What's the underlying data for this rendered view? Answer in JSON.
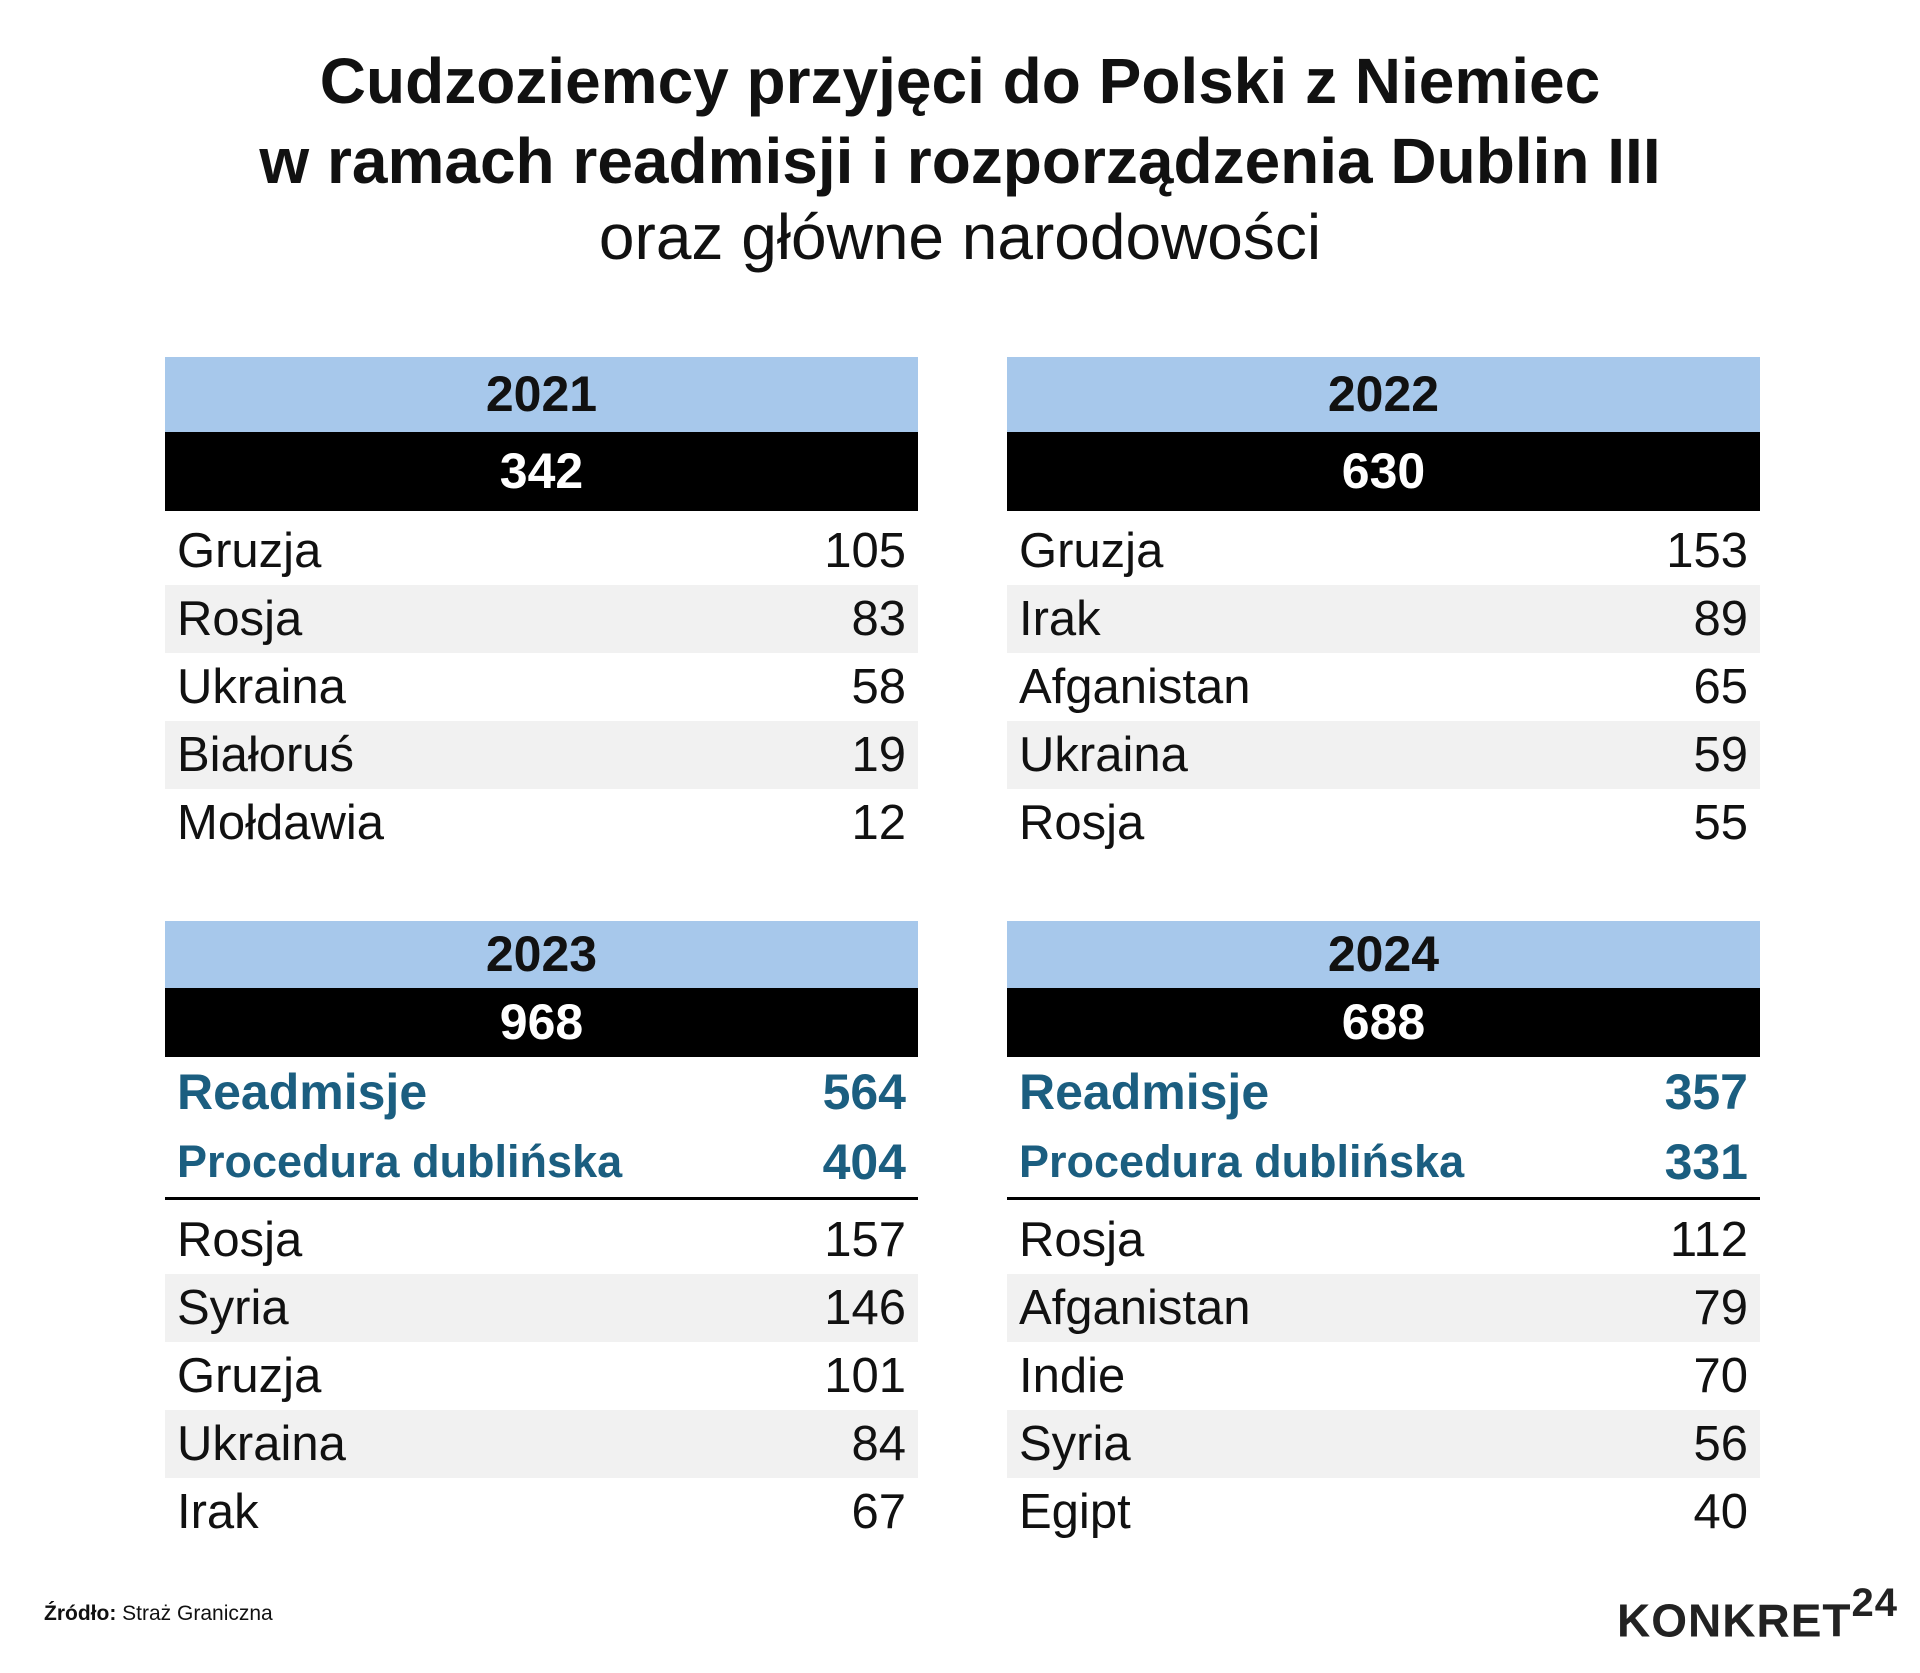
{
  "title": {
    "line1": "Cudzoziemcy przyjęci do Polski z Niemiec",
    "line2": "w ramach readmisji i rozporządzenia Dublin III",
    "line3": "oraz główne narodowości"
  },
  "panels": [
    {
      "year": "2021",
      "total": "342",
      "rows": [
        {
          "country": "Gruzja",
          "value": "105"
        },
        {
          "country": "Rosja",
          "value": "83"
        },
        {
          "country": "Ukraina",
          "value": "58"
        },
        {
          "country": "Białoruś",
          "value": "19"
        },
        {
          "country": "Mołdawia",
          "value": "12"
        }
      ]
    },
    {
      "year": "2022",
      "total": "630",
      "rows": [
        {
          "country": "Gruzja",
          "value": "153"
        },
        {
          "country": "Irak",
          "value": "89"
        },
        {
          "country": "Afganistan",
          "value": "65"
        },
        {
          "country": "Ukraina",
          "value": "59"
        },
        {
          "country": "Rosja",
          "value": "55"
        }
      ]
    },
    {
      "year": "2023",
      "total": "968",
      "readmisje": {
        "label": "Readmisje",
        "value": "564"
      },
      "dublin": {
        "label": "Procedura dublińska",
        "value": "404"
      },
      "rows": [
        {
          "country": "Rosja",
          "value": "157"
        },
        {
          "country": "Syria",
          "value": "146"
        },
        {
          "country": "Gruzja",
          "value": "101"
        },
        {
          "country": "Ukraina",
          "value": "84"
        },
        {
          "country": "Irak",
          "value": "67"
        }
      ]
    },
    {
      "year": "2024",
      "total": "688",
      "readmisje": {
        "label": "Readmisje",
        "value": "357"
      },
      "dublin": {
        "label": "Procedura dublińska",
        "value": "331"
      },
      "rows": [
        {
          "country": "Rosja",
          "value": "112"
        },
        {
          "country": "Afganistan",
          "value": "79"
        },
        {
          "country": "Indie",
          "value": "70"
        },
        {
          "country": "Syria",
          "value": "56"
        },
        {
          "country": "Egipt",
          "value": "40"
        }
      ]
    }
  ],
  "footer": {
    "source_label": "Źródło:",
    "source": "Straż Graniczna"
  },
  "logo": {
    "text": "KONKRET",
    "suffix": "24"
  },
  "colors": {
    "year_header": "#a7c8eb",
    "total_bar": "#000000",
    "accent": "#1b5e80",
    "alt_row": "#f1f1f1"
  }
}
